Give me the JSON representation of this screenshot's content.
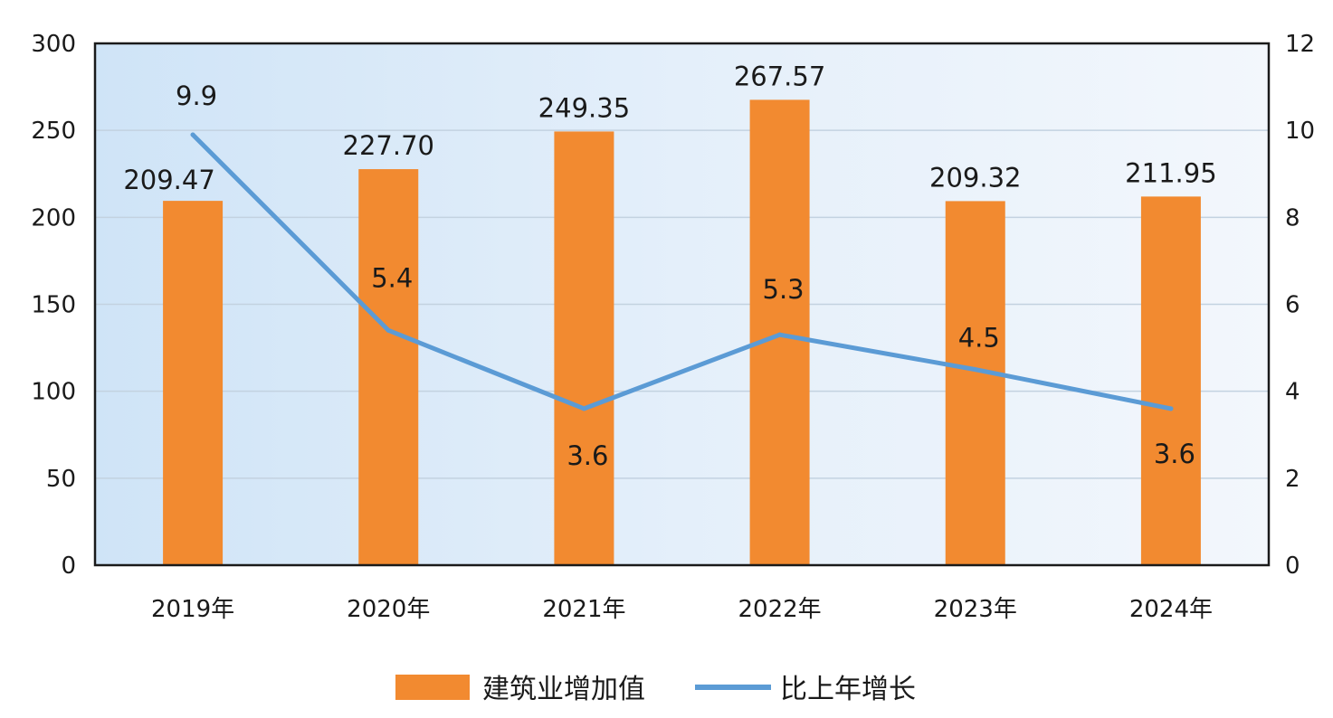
{
  "chart_data": {
    "type": "bar",
    "categories": [
      "2019年",
      "2020年",
      "2021年",
      "2022年",
      "2023年",
      "2024年"
    ],
    "series": [
      {
        "name": "建筑业增加值",
        "type": "bar",
        "axis": "left",
        "values": [
          209.47,
          227.7,
          249.35,
          267.57,
          209.32,
          211.95
        ],
        "labels": [
          "209.47",
          "227.70",
          "249.35",
          "267.57",
          "209.32",
          "211.95"
        ],
        "color": "#F28A30"
      },
      {
        "name": "比上年增长",
        "type": "line",
        "axis": "right",
        "values": [
          9.9,
          5.4,
          3.6,
          5.3,
          4.5,
          3.6
        ],
        "labels": [
          "9.9",
          "5.4",
          "3.6",
          "5.3",
          "4.5",
          "3.6"
        ],
        "color": "#5B9BD5"
      }
    ],
    "y_left": {
      "min": 0,
      "max": 300,
      "ticks": [
        "0",
        "50",
        "100",
        "150",
        "200",
        "250",
        "300"
      ]
    },
    "y_right": {
      "min": 0,
      "max": 12,
      "ticks": [
        "0",
        "2",
        "4",
        "6",
        "8",
        "10",
        "12"
      ]
    },
    "grid": true,
    "legend_position": "bottom"
  }
}
